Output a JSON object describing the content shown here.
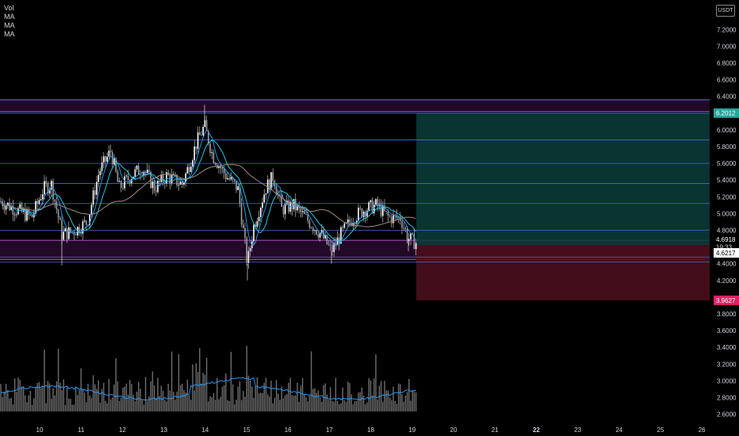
{
  "legend": [
    "Vol",
    "MA",
    "MA",
    "MA"
  ],
  "price_unit": "USDT",
  "y_ticks": [
    "7.2000",
    "7.0000",
    "6.8000",
    "6.6000",
    "6.4000",
    "6.0000",
    "5.8000",
    "5.6000",
    "5.4000",
    "5.2000",
    "5.0000",
    "4.8000",
    "4.4000",
    "4.2000",
    "3.8000",
    "3.6000",
    "3.4000",
    "3.2000",
    "3.0000",
    "2.8000",
    "2.6000"
  ],
  "y_tick_values": [
    7.2,
    7.0,
    6.8,
    6.6,
    6.4,
    6.0,
    5.8,
    5.6,
    5.4,
    5.2,
    5.0,
    4.8,
    4.4,
    4.2,
    3.8,
    3.6,
    3.4,
    3.2,
    3.0,
    2.8,
    2.6
  ],
  "x_ticks": [
    {
      "label": "10",
      "bold": false
    },
    {
      "label": "11",
      "bold": false
    },
    {
      "label": "12",
      "bold": false
    },
    {
      "label": "13",
      "bold": false
    },
    {
      "label": "14",
      "bold": false
    },
    {
      "label": "15",
      "bold": false
    },
    {
      "label": "16",
      "bold": false
    },
    {
      "label": "17",
      "bold": false
    },
    {
      "label": "18",
      "bold": false
    },
    {
      "label": "19",
      "bold": false
    },
    {
      "label": "20",
      "bold": false
    },
    {
      "label": "21",
      "bold": false
    },
    {
      "label": "22",
      "bold": true
    },
    {
      "label": "23",
      "bold": false
    },
    {
      "label": "24",
      "bold": false
    },
    {
      "label": "25",
      "bold": false
    },
    {
      "label": "26",
      "bold": false
    }
  ],
  "price_tags": [
    {
      "label": "6.2012",
      "value": 6.2012,
      "bg": "#26a69a",
      "fg": "#ffffff"
    },
    {
      "label": "4.6918",
      "value": 4.6918,
      "bg": "#000000",
      "fg": "#ffffff"
    },
    {
      "label": "19:33",
      "value": 4.6,
      "bg": "#000000",
      "fg": "#d1d4dc"
    },
    {
      "label": "4.6217",
      "value": 4.53,
      "bg": "#ffffff",
      "fg": "#000000"
    },
    {
      "label": "3.9627",
      "value": 3.9627,
      "bg": "#e91e63",
      "fg": "#ffffff"
    }
  ],
  "horizontal_levels": [
    6.36,
    6.2,
    5.88,
    5.6,
    5.36,
    5.12,
    4.8,
    4.48,
    4.42
  ],
  "zones": [
    {
      "name": "top-resistance",
      "from": 6.22,
      "to": 6.36,
      "color": "#9c27b0"
    },
    {
      "name": "support",
      "from": 4.45,
      "to": 4.68,
      "color": "#9c27b0"
    }
  ],
  "position": {
    "entry": 4.6217,
    "target": 6.2012,
    "stop": 3.9627
  },
  "colors": {
    "target_fill": "#0b3d3a",
    "stop_fill": "#4a0f1c",
    "level_line": "#3d6fcf",
    "zone_line": "#b34fd1",
    "candle": "#e0e0e0",
    "ma_fast": "#2196f3",
    "ma_mid": "#26c6da",
    "ma_slow": "#a1887f",
    "vol_ma": "#2196f3"
  }
}
